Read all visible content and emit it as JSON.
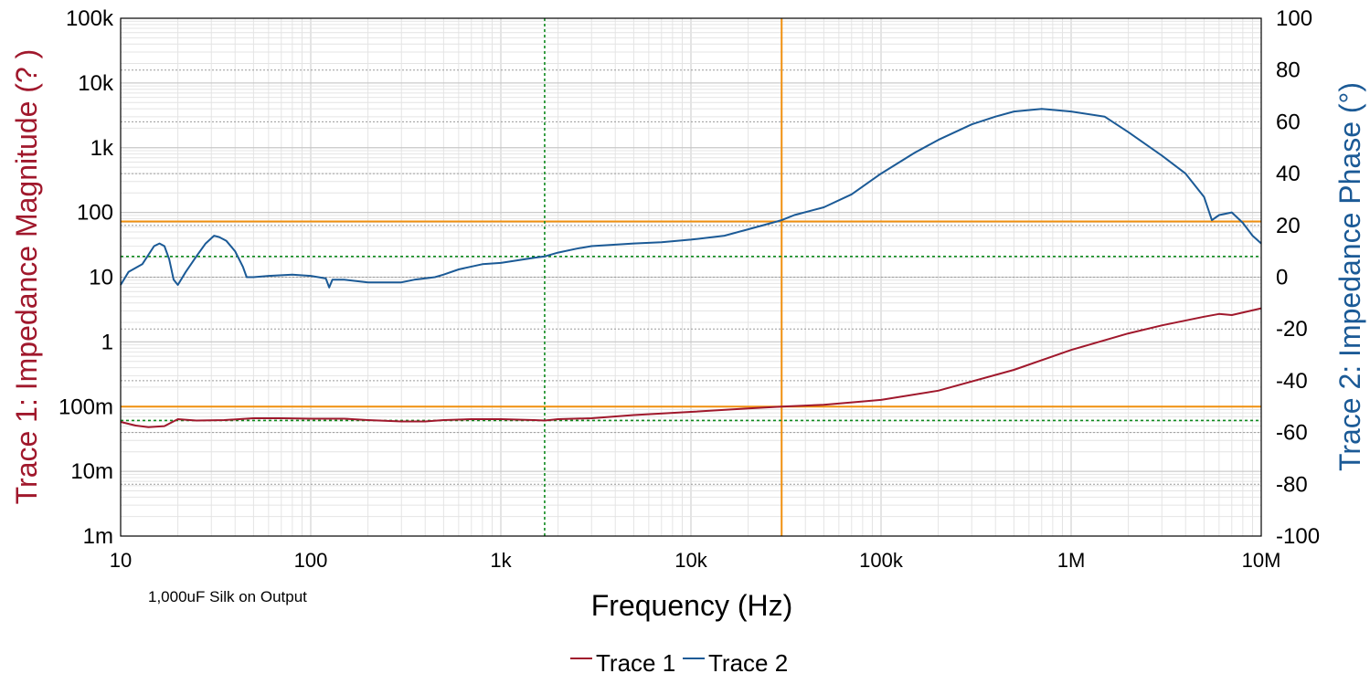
{
  "colors": {
    "trace1": "#a0182c",
    "trace2": "#1b5a96",
    "cursor_orange": "#f0900f",
    "cursor_green": "#0f8a1e",
    "grid_major": "#c8c8c8",
    "grid_minor": "#e4e4e4"
  },
  "chart_data": {
    "type": "line",
    "xlabel": "Frequency (Hz)",
    "ylabel_left": "Trace 1: Impedance Magnitude (? )",
    "ylabel_right": "Trace 2: Impedance Phase (°)",
    "annotation": "1,000uF Silk on Output",
    "x_scale": "log",
    "xlim": [
      10,
      10000000
    ],
    "x_ticks": [
      {
        "value": 10,
        "label": "10"
      },
      {
        "value": 100,
        "label": "100"
      },
      {
        "value": 1000,
        "label": "1k"
      },
      {
        "value": 10000,
        "label": "10k"
      },
      {
        "value": 100000,
        "label": "100k"
      },
      {
        "value": 1000000,
        "label": "1M"
      },
      {
        "value": 10000000,
        "label": "10M"
      }
    ],
    "y_left_scale": "log",
    "y_left_lim": [
      0.001,
      100000
    ],
    "y_left_ticks": [
      {
        "value": 100000,
        "label": "100k"
      },
      {
        "value": 10000,
        "label": "10k"
      },
      {
        "value": 1000,
        "label": "1k"
      },
      {
        "value": 100,
        "label": "100"
      },
      {
        "value": 10,
        "label": "10"
      },
      {
        "value": 1,
        "label": "1"
      },
      {
        "value": 0.1,
        "label": "100m"
      },
      {
        "value": 0.01,
        "label": "10m"
      },
      {
        "value": 0.001,
        "label": "1m"
      }
    ],
    "y_right_lim": [
      -100,
      100
    ],
    "y_right_ticks": [
      {
        "value": 100,
        "label": "100"
      },
      {
        "value": 80,
        "label": "80"
      },
      {
        "value": 60,
        "label": "60"
      },
      {
        "value": 40,
        "label": "40"
      },
      {
        "value": 20,
        "label": "20"
      },
      {
        "value": 0,
        "label": "0"
      },
      {
        "value": -20,
        "label": "-20"
      },
      {
        "value": -40,
        "label": "-40"
      },
      {
        "value": -60,
        "label": "-60"
      },
      {
        "value": -80,
        "label": "-80"
      },
      {
        "value": -100,
        "label": "-100"
      }
    ],
    "grid": true,
    "legend_position": "bottom-center",
    "series": [
      {
        "name": "Trace 1",
        "axis": "left",
        "points": [
          [
            10,
            0.058
          ],
          [
            12,
            0.051
          ],
          [
            14,
            0.048
          ],
          [
            17,
            0.05
          ],
          [
            20,
            0.064
          ],
          [
            25,
            0.061
          ],
          [
            35,
            0.062
          ],
          [
            50,
            0.066
          ],
          [
            70,
            0.066
          ],
          [
            100,
            0.065
          ],
          [
            150,
            0.065
          ],
          [
            200,
            0.062
          ],
          [
            300,
            0.059
          ],
          [
            400,
            0.059
          ],
          [
            500,
            0.062
          ],
          [
            700,
            0.064
          ],
          [
            1000,
            0.064
          ],
          [
            1500,
            0.062
          ],
          [
            1700,
            0.061
          ],
          [
            2000,
            0.064
          ],
          [
            3000,
            0.066
          ],
          [
            5000,
            0.074
          ],
          [
            10000,
            0.083
          ],
          [
            20000,
            0.094
          ],
          [
            30000,
            0.1
          ],
          [
            50000,
            0.107
          ],
          [
            100000,
            0.127
          ],
          [
            200000,
            0.176
          ],
          [
            500000,
            0.37
          ],
          [
            1000000,
            0.75
          ],
          [
            2000000,
            1.35
          ],
          [
            3000000,
            1.8
          ],
          [
            5000000,
            2.45
          ],
          [
            6000000,
            2.7
          ],
          [
            7000000,
            2.6
          ],
          [
            10000000,
            3.3
          ]
        ]
      },
      {
        "name": "Trace 2",
        "axis": "right",
        "points": [
          [
            10,
            -3
          ],
          [
            11,
            2
          ],
          [
            13,
            5
          ],
          [
            15,
            12
          ],
          [
            16,
            13
          ],
          [
            17,
            12
          ],
          [
            18,
            7
          ],
          [
            19,
            -1
          ],
          [
            20,
            -3
          ],
          [
            22,
            2
          ],
          [
            25,
            8
          ],
          [
            28,
            13
          ],
          [
            31,
            16
          ],
          [
            33,
            15.5
          ],
          [
            36,
            14
          ],
          [
            40,
            10
          ],
          [
            44,
            4
          ],
          [
            46,
            0
          ],
          [
            50,
            0
          ],
          [
            60,
            0.5
          ],
          [
            80,
            1
          ],
          [
            100,
            0.5
          ],
          [
            120,
            -0.5
          ],
          [
            125,
            -4
          ],
          [
            130,
            -1
          ],
          [
            150,
            -1
          ],
          [
            200,
            -2
          ],
          [
            300,
            -2
          ],
          [
            350,
            -1
          ],
          [
            450,
            0
          ],
          [
            500,
            1
          ],
          [
            600,
            3
          ],
          [
            800,
            5
          ],
          [
            1000,
            5.5
          ],
          [
            1500,
            7.5
          ],
          [
            1700,
            8
          ],
          [
            2000,
            9.5
          ],
          [
            2500,
            11
          ],
          [
            3000,
            12
          ],
          [
            5000,
            13
          ],
          [
            7000,
            13.5
          ],
          [
            10000,
            14.5
          ],
          [
            15000,
            16
          ],
          [
            20000,
            18.5
          ],
          [
            30000,
            22
          ],
          [
            35000,
            24
          ],
          [
            50000,
            27
          ],
          [
            70000,
            32
          ],
          [
            100000,
            40
          ],
          [
            150000,
            48
          ],
          [
            200000,
            53
          ],
          [
            300000,
            59
          ],
          [
            400000,
            62
          ],
          [
            500000,
            64
          ],
          [
            700000,
            65
          ],
          [
            1000000,
            64
          ],
          [
            1500000,
            62
          ],
          [
            2000000,
            56
          ],
          [
            3000000,
            47
          ],
          [
            4000000,
            40
          ],
          [
            5000000,
            31
          ],
          [
            5500000,
            22
          ],
          [
            6000000,
            24
          ],
          [
            7000000,
            25
          ],
          [
            8000000,
            21
          ],
          [
            9000000,
            16
          ],
          [
            10000000,
            13
          ]
        ]
      }
    ],
    "cursors": [
      {
        "name": "orange-vertical",
        "axis": "x",
        "value": 30000,
        "color": "orange"
      },
      {
        "name": "orange-horizontal-left",
        "axis": "left",
        "value": 0.1,
        "color": "orange"
      },
      {
        "name": "orange-horizontal-right",
        "axis": "right",
        "value": 21.5,
        "color": "orange"
      },
      {
        "name": "green-vertical",
        "axis": "x",
        "value": 1700,
        "color": "green"
      },
      {
        "name": "green-horizontal-left",
        "axis": "left",
        "value": 0.061,
        "color": "green"
      },
      {
        "name": "green-horizontal-right",
        "axis": "right",
        "value": 8,
        "color": "green"
      }
    ]
  },
  "legend": {
    "items": [
      {
        "label": "Trace 1"
      },
      {
        "label": "Trace 2"
      }
    ]
  }
}
